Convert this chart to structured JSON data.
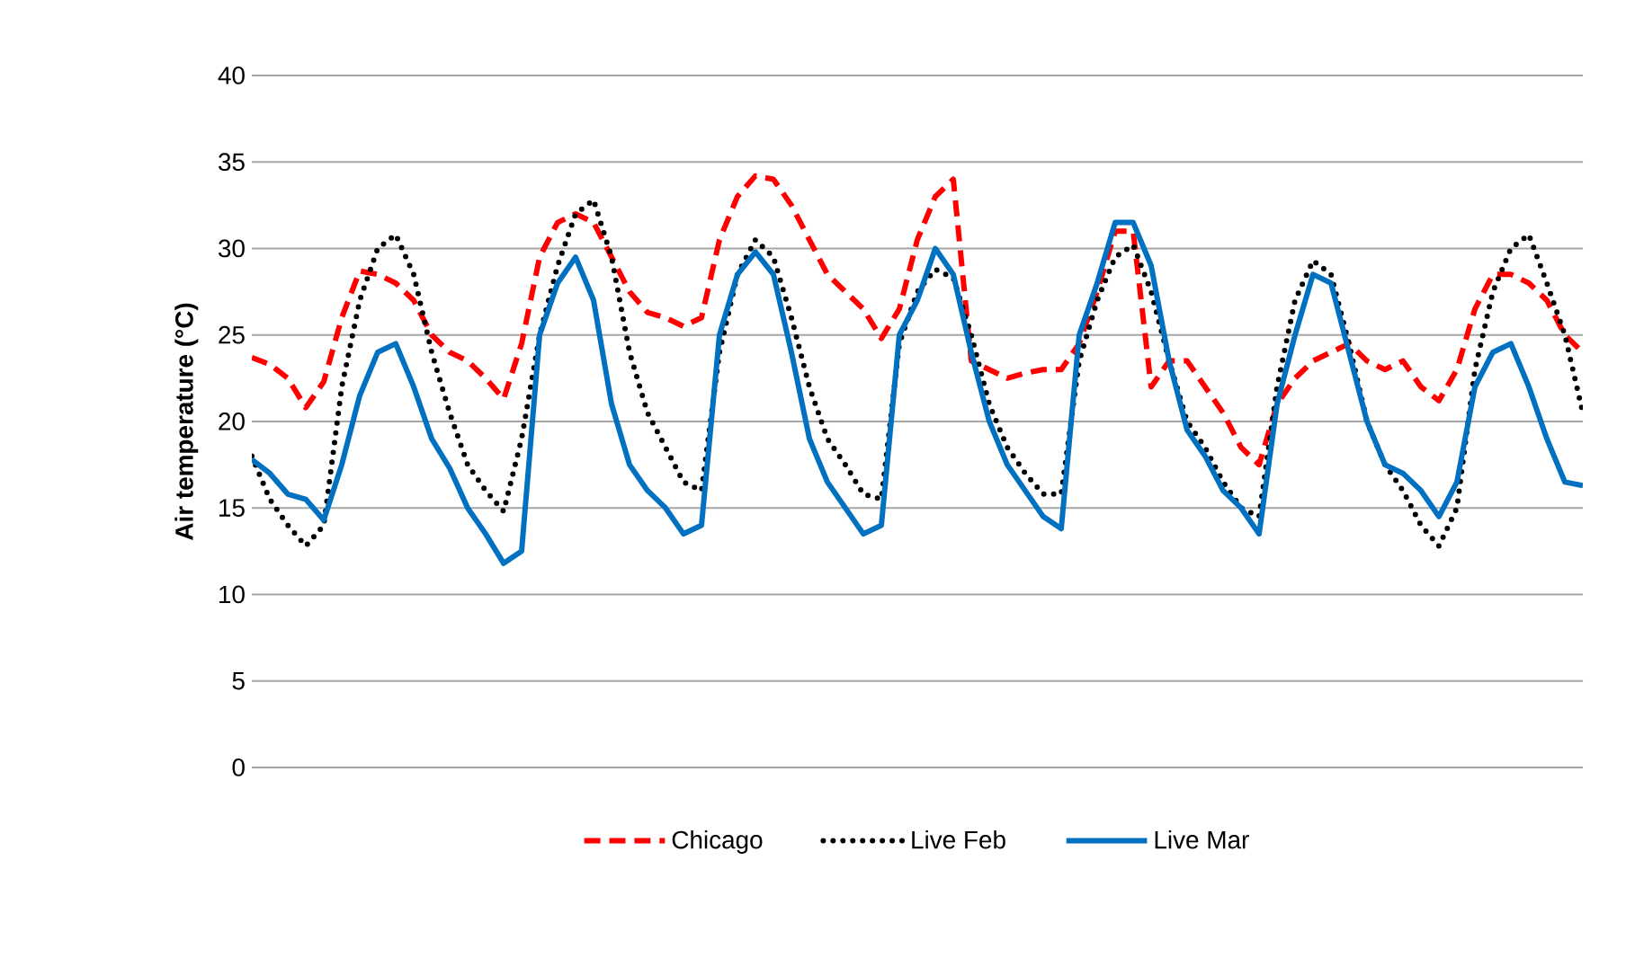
{
  "chart_data": {
    "type": "line",
    "ylabel": "Air temperature (°C)",
    "categories": [
      null,
      null,
      null,
      null,
      null,
      null,
      null,
      null,
      null,
      null,
      null,
      null,
      null,
      null,
      null,
      null,
      null,
      null,
      null,
      null,
      null,
      null,
      null,
      null,
      null,
      null,
      null,
      null,
      null,
      null,
      null,
      null,
      null,
      null,
      null,
      null,
      null,
      null,
      null,
      null,
      null,
      null,
      null,
      null,
      null,
      null,
      null,
      null,
      null,
      null,
      null,
      null,
      null,
      null,
      null,
      null,
      null,
      null,
      null,
      null,
      null,
      null,
      null,
      null,
      null,
      null,
      null,
      null,
      null,
      null,
      null,
      null,
      null,
      null,
      null
    ],
    "ylim": [
      0,
      40
    ],
    "yticks": [
      0,
      5,
      10,
      15,
      20,
      25,
      30,
      35,
      40
    ],
    "grid": "y",
    "legend": "bottom",
    "tick_labels": "y",
    "marker": "none",
    "series": [
      {
        "name": "Chicago",
        "color": "#ff0000",
        "line_style": "dashed",
        "values": [
          23.7,
          23.3,
          22.5,
          20.8,
          22.3,
          26,
          28.7,
          28.5,
          28,
          27,
          25,
          24,
          23.5,
          22.5,
          21.3,
          24.5,
          29.5,
          31.5,
          32,
          31.5,
          29.5,
          27.5,
          26.3,
          26,
          25.5,
          26,
          30.5,
          33,
          34.2,
          34,
          32.5,
          30.5,
          28.5,
          27.5,
          26.5,
          24.8,
          26.5,
          30.5,
          33,
          34,
          23.5,
          23,
          22.5,
          22.8,
          23,
          23,
          24.5,
          27.5,
          31,
          31,
          22,
          23.5,
          23.5,
          22,
          20.5,
          18.5,
          17.5,
          21,
          22.5,
          23.5,
          24,
          24.5,
          23.5,
          23,
          23.5,
          22,
          21.2,
          23,
          26.5,
          28.5,
          28.5,
          28,
          27,
          25,
          24
        ]
      },
      {
        "name": "Live Feb",
        "color": "#000000",
        "line_style": "dotted",
        "values": [
          18,
          15.5,
          14,
          12.8,
          14,
          22,
          27,
          30,
          30.8,
          28.5,
          24,
          20.5,
          17.5,
          16,
          14.8,
          19,
          25,
          29,
          32,
          32.8,
          29.5,
          24,
          20.5,
          18.5,
          16.5,
          16,
          24,
          28.5,
          30.5,
          29.5,
          26,
          22,
          19,
          17.5,
          15.8,
          15.5,
          24.5,
          27.5,
          28.8,
          28.3,
          25,
          21,
          18.5,
          17,
          15.8,
          15.8,
          23.5,
          27,
          29.5,
          30.2,
          27.5,
          23.5,
          20,
          18.5,
          16.5,
          15,
          14.5,
          22,
          27,
          29.3,
          28.5,
          24.5,
          20,
          17.5,
          16,
          14,
          12.8,
          15,
          23,
          27.5,
          30,
          30.8,
          28,
          25,
          20.5
        ]
      },
      {
        "name": "Live Mar",
        "color": "#0070c0",
        "line_style": "solid",
        "values": [
          17.8,
          17,
          15.8,
          15.5,
          14.3,
          17.5,
          21.5,
          24,
          24.5,
          22,
          19,
          17.3,
          15,
          13.5,
          11.8,
          12.5,
          25,
          28,
          29.5,
          27,
          21,
          17.5,
          16,
          15,
          13.5,
          14,
          25,
          28.5,
          29.8,
          28.5,
          24,
          19,
          16.5,
          15,
          13.5,
          14,
          25,
          27,
          30,
          28.5,
          24,
          20,
          17.5,
          16,
          14.5,
          13.8,
          25,
          28,
          31.5,
          31.5,
          29,
          23.5,
          19.5,
          18,
          16,
          15,
          13.5,
          21,
          25,
          28.5,
          28,
          24,
          20,
          17.5,
          17,
          16,
          14.5,
          16.5,
          22,
          24,
          24.5,
          22,
          19,
          16.5,
          16.3
        ]
      }
    ]
  }
}
